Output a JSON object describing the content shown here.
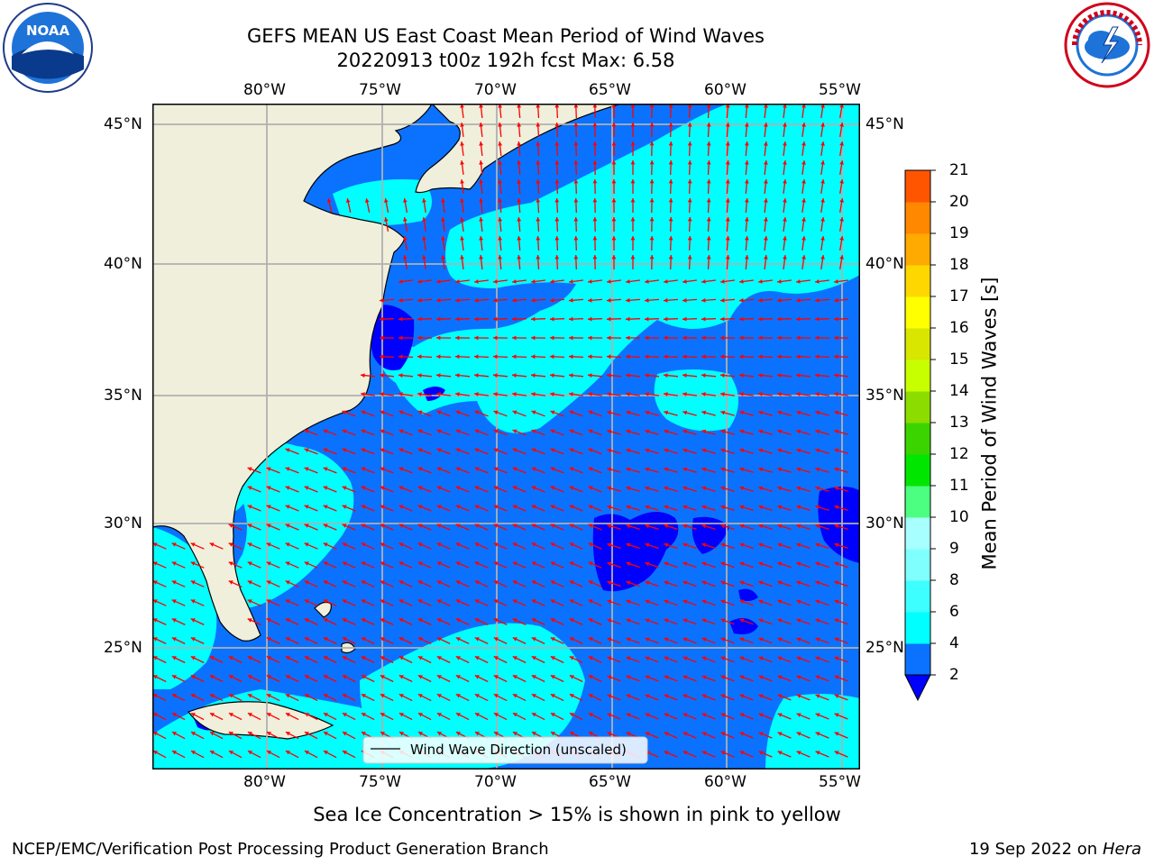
{
  "header": {
    "title_line1": "GEFS MEAN US East Coast Mean Period of Wind Waves",
    "title_line2": "20220913 t00z 192h fcst   Max: 6.58"
  },
  "logos": {
    "left_icon": "noaa-logo",
    "left_text": "NOAA",
    "right_icon": "nws-logo",
    "right_text": "NATIONAL WEATHER SERVICE"
  },
  "map": {
    "lon_labels": [
      "80°W",
      "75°W",
      "70°W",
      "65°W",
      "60°W",
      "55°W"
    ],
    "lat_labels": [
      "45°N",
      "40°N",
      "35°N",
      "30°N",
      "25°N"
    ],
    "legend_label": "Wind Wave Direction (unscaled)",
    "extent": {
      "lon": [
        -85,
        -54.5
      ],
      "lat": [
        20.5,
        46
      ]
    }
  },
  "colorbar": {
    "label": "Mean Period of Wind Waves [s]",
    "ticks": [
      "2",
      "4",
      "6",
      "8",
      "9",
      "10",
      "11",
      "12",
      "13",
      "14",
      "15",
      "16",
      "17",
      "18",
      "19",
      "20",
      "21"
    ],
    "colors": [
      "#0b72ff",
      "#00ffff",
      "#3dffff",
      "#80ffff",
      "#a8ffff",
      "#4dff80",
      "#00e600",
      "#3bd400",
      "#8cdc00",
      "#c8ff00",
      "#d8e600",
      "#ffff00",
      "#ffd700",
      "#ffaa00",
      "#ff8800",
      "#ff5500",
      "#ff2a00",
      "#ff0000"
    ],
    "under_color": "#0000ff"
  },
  "notes": {
    "sea_ice": "Sea Ice Concentration > 15% is shown in pink to yellow"
  },
  "footer": {
    "left": "NCEP/EMC/Verification Post Processing Product Generation Branch",
    "date": "19 Sep 2022 on",
    "machine": "Hera"
  },
  "colors": {
    "land": "#efefdc",
    "arrow": "#ff0000",
    "grid": "#b0b0b0",
    "deep_blue": "#0000ff",
    "mid_blue": "#0b72ff",
    "cyan": "#00ffff"
  }
}
